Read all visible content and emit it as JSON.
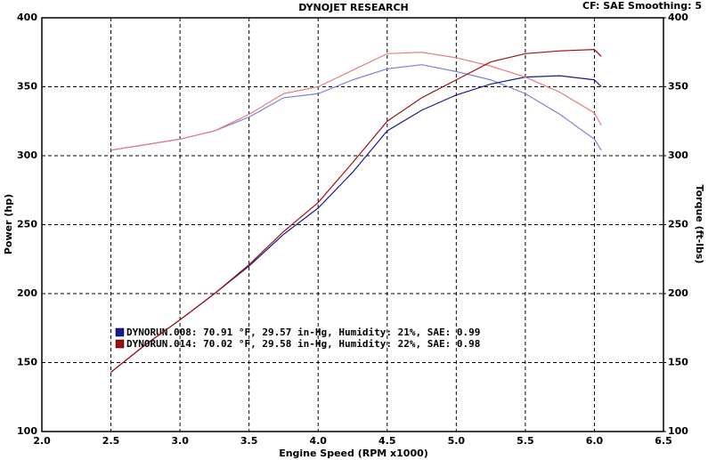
{
  "chart_data": {
    "type": "line",
    "title": "DYNOJET RESEARCH",
    "subtitle": "CF: SAE  Smoothing: 5",
    "x_label": "Engine Speed (RPM x1000)",
    "y_label": "Power (hp)",
    "y2_label": "Torque (ft-lbs)",
    "x": [
      2.5,
      2.75,
      3.0,
      3.25,
      3.5,
      3.75,
      4.0,
      4.25,
      4.5,
      4.75,
      5.0,
      5.25,
      5.5,
      5.75,
      6.0,
      6.05
    ],
    "runs": [
      {
        "name": "DYNORUN.008: 70.91 °F, 29.57 in-Hg, Humidity: 21%, SAE: 0.99",
        "color": "#1a1a8c",
        "torque_color": "#7f7fd8",
        "power": [
          143,
          163,
          181,
          200,
          220,
          243,
          262,
          288,
          318,
          333,
          344,
          352,
          357,
          358,
          355,
          350
        ],
        "torque": [
          304,
          308,
          312,
          318,
          328,
          342,
          345,
          355,
          363,
          366,
          361,
          355,
          345,
          330,
          312,
          304
        ]
      },
      {
        "name": "DYNORUN.014: 70.02 °F, 29.58 in-Hg, Humidity: 22%, SAE: 0.98",
        "color": "#a01010",
        "torque_color": "#e68080",
        "power": [
          143,
          163,
          181,
          200,
          221,
          245,
          266,
          295,
          325,
          342,
          355,
          368,
          374,
          376,
          377,
          372
        ],
        "torque": [
          304,
          308,
          312,
          318,
          330,
          345,
          350,
          362,
          374,
          375,
          371,
          365,
          357,
          346,
          331,
          322
        ]
      }
    ],
    "xlim": [
      2.0,
      6.5
    ],
    "xticks": [
      {
        "value": 2.0,
        "label": "2.0"
      },
      {
        "value": 2.5,
        "label": "2.5"
      },
      {
        "value": 3.0,
        "label": "3.0"
      },
      {
        "value": 3.5,
        "label": "3.5"
      },
      {
        "value": 4.0,
        "label": "4.0"
      },
      {
        "value": 4.5,
        "label": "4.5"
      },
      {
        "value": 5.0,
        "label": "5.0"
      },
      {
        "value": 5.5,
        "label": "5.5"
      },
      {
        "value": 6.0,
        "label": "6.0"
      },
      {
        "value": 6.5,
        "label": "6.5"
      }
    ],
    "ylim": [
      100,
      400
    ],
    "yticks": [
      100,
      150,
      200,
      250,
      300,
      350,
      400
    ],
    "y2lim": [
      100,
      400
    ],
    "y2ticks": [
      100,
      150,
      200,
      250,
      300,
      350,
      400
    ],
    "grid": true
  }
}
